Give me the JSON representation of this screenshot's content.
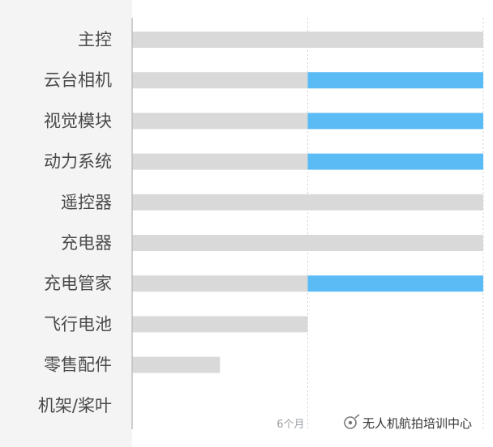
{
  "chart_data": {
    "type": "bar",
    "orientation": "horizontal",
    "stacked": true,
    "categories": [
      "主控",
      "云台相机",
      "视觉模块",
      "动力系统",
      "遥控器",
      "充电器",
      "充电管家",
      "飞行电池",
      "零售配件",
      "机架/桨叶"
    ],
    "series": [
      {
        "color": "#d9d9d9",
        "values": [
          12,
          6,
          6,
          6,
          12,
          12,
          6,
          6,
          3,
          0
        ]
      },
      {
        "color": "#5bbcf5",
        "values": [
          0,
          6,
          6,
          6,
          0,
          0,
          6,
          0,
          0,
          0
        ]
      }
    ],
    "xlim": [
      0,
      12
    ],
    "xticks": [
      {
        "value": 6,
        "label": "6个月"
      }
    ],
    "grid": "dashed vertical lines at 6 and 12",
    "legend": "none"
  },
  "watermark": {
    "icon": "wechat-official-account-icon",
    "text": "无人机航拍培训中心"
  }
}
